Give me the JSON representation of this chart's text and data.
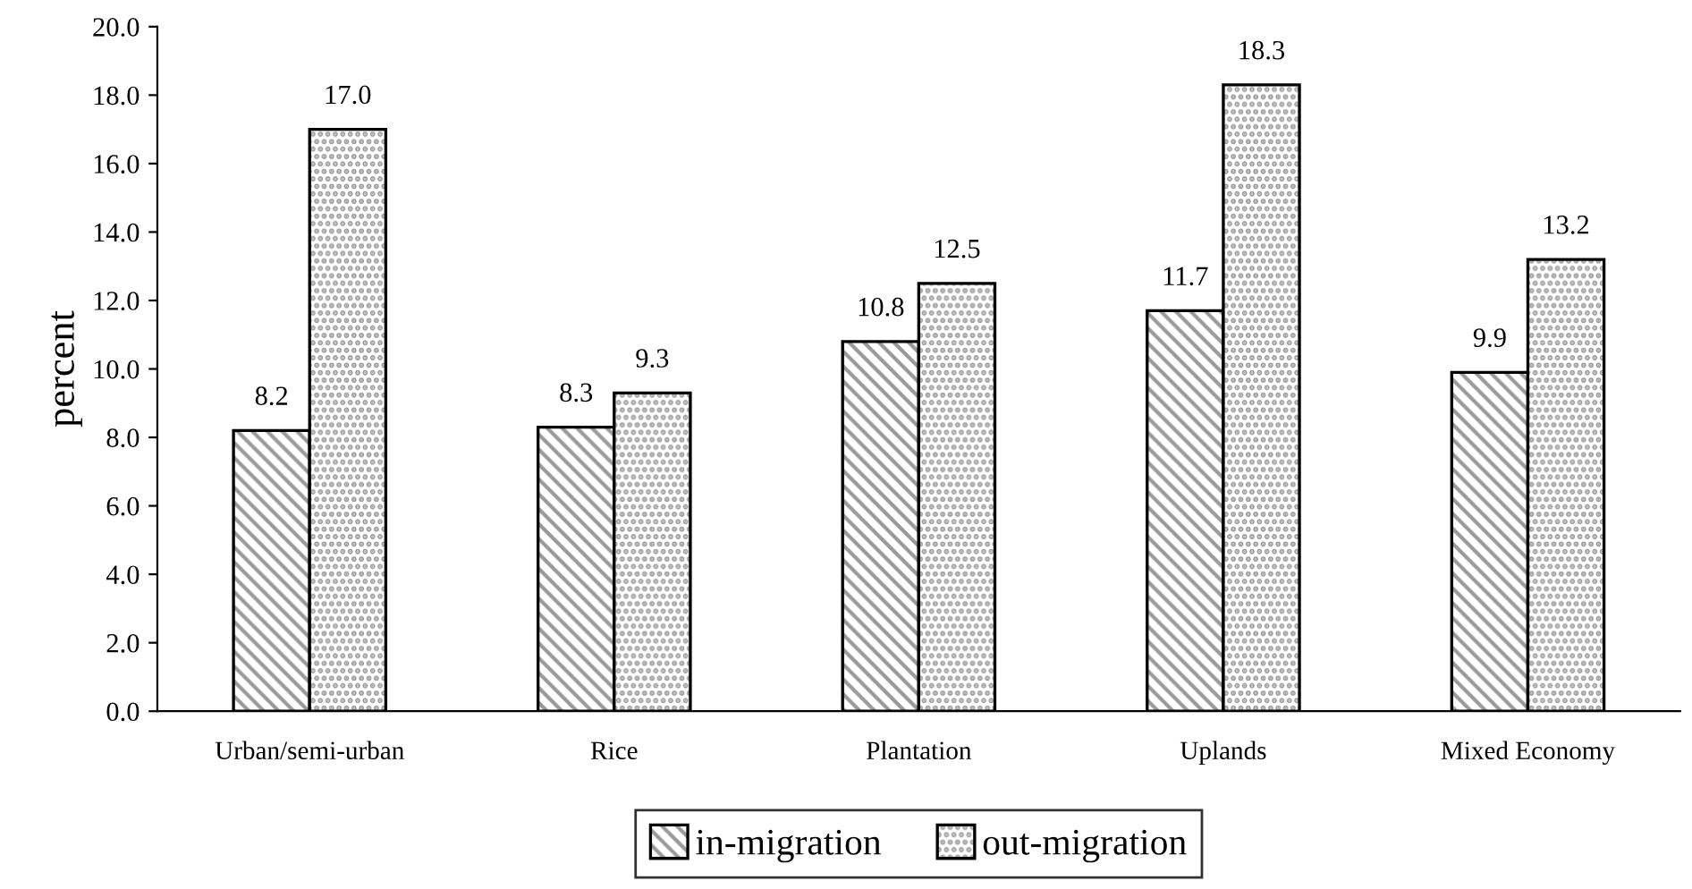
{
  "chart_data": {
    "type": "bar",
    "ylabel": "percent",
    "categories": [
      "Urban/semi-urban",
      "Rice",
      "Plantation",
      "Uplands",
      "Mixed Economy"
    ],
    "series": [
      {
        "name": "in-migration",
        "color": "#000000",
        "values": [
          8.2,
          8.3,
          10.8,
          11.7,
          9.9
        ],
        "value_labels": [
          "8.2",
          "8.3",
          "10.8",
          "11.7",
          "9.9"
        ]
      },
      {
        "name": "out-migration",
        "color": "#000000",
        "values": [
          17.0,
          9.3,
          12.5,
          18.3,
          13.2
        ],
        "value_labels": [
          "17.0",
          "9.3",
          "12.5",
          "18.3",
          "13.2"
        ]
      }
    ],
    "ylim": [
      0,
      20
    ],
    "yticks": [
      {
        "value": 0,
        "label": "0.0"
      },
      {
        "value": 2,
        "label": "2.0"
      },
      {
        "value": 4,
        "label": "4.0"
      },
      {
        "value": 6,
        "label": "6.0"
      },
      {
        "value": 8,
        "label": "8.0"
      },
      {
        "value": 10,
        "label": "10.0"
      },
      {
        "value": 12,
        "label": "12.0"
      },
      {
        "value": 14,
        "label": "14.0"
      },
      {
        "value": 16,
        "label": "16.0"
      },
      {
        "value": 18,
        "label": "18.0"
      },
      {
        "value": 20,
        "label": "20.0"
      }
    ],
    "grid": false,
    "legend": "bottom"
  }
}
